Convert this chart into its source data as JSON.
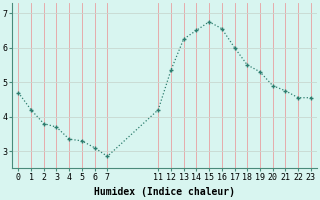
{
  "x": [
    0,
    1,
    2,
    3,
    4,
    5,
    6,
    7,
    11,
    12,
    13,
    14,
    15,
    16,
    17,
    18,
    19,
    20,
    21,
    22,
    23
  ],
  "y": [
    4.7,
    4.2,
    3.8,
    3.7,
    3.35,
    3.3,
    3.1,
    2.85,
    4.2,
    5.35,
    6.25,
    6.5,
    6.75,
    6.55,
    6.0,
    5.5,
    5.3,
    4.9,
    4.75,
    4.55,
    4.55
  ],
  "line_color": "#2d7d6e",
  "bg_color": "#d8f5f0",
  "grid_color_v": "#e8a0a0",
  "grid_color_h": "#c8d8d0",
  "xlabel": "Humidex (Indice chaleur)",
  "xlim": [
    -0.5,
    23.5
  ],
  "ylim": [
    2.5,
    7.3
  ],
  "yticks": [
    3,
    4,
    5,
    6,
    7
  ],
  "xticks": [
    0,
    1,
    2,
    3,
    4,
    5,
    6,
    7,
    11,
    12,
    13,
    14,
    15,
    16,
    17,
    18,
    19,
    20,
    21,
    22,
    23
  ],
  "xlabel_fontsize": 7.0,
  "tick_fontsize": 6.0,
  "marker": "+",
  "markersize": 3.5,
  "linewidth": 0.9
}
